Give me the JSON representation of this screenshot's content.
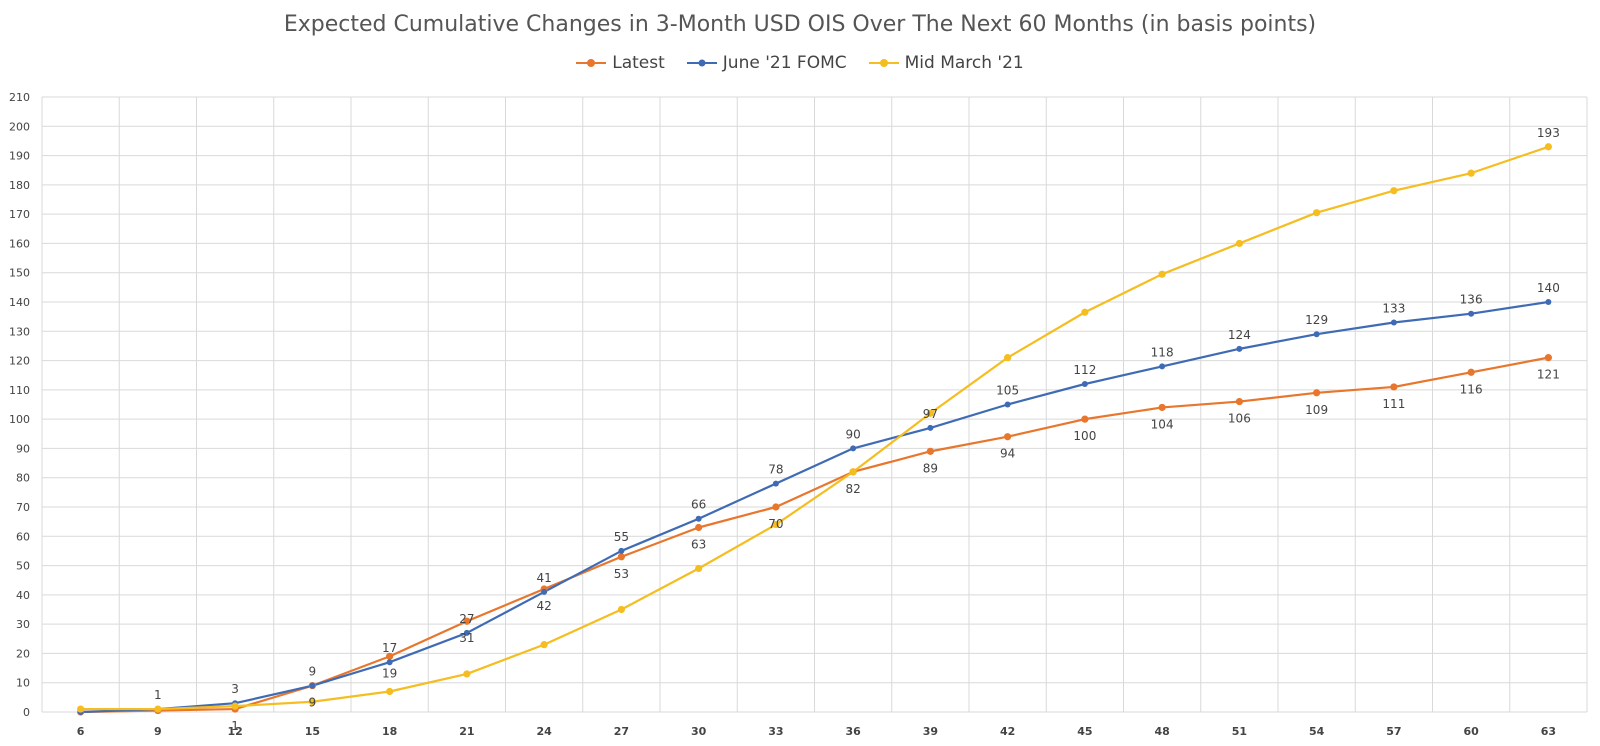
{
  "chart_data": {
    "type": "line",
    "title": "Expected Cumulative Changes in 3-Month USD OIS Over The Next 60 Months (in basis points)",
    "xlabel": "",
    "ylabel": "",
    "ylim": [
      0,
      210
    ],
    "y_ticks": [
      0,
      10,
      20,
      30,
      40,
      50,
      60,
      70,
      80,
      90,
      100,
      110,
      120,
      130,
      140,
      150,
      160,
      170,
      180,
      190,
      200,
      210
    ],
    "x": [
      6,
      9,
      12,
      15,
      18,
      21,
      24,
      27,
      30,
      33,
      36,
      39,
      42,
      45,
      48,
      51,
      54,
      57,
      60,
      63
    ],
    "grid": true,
    "legend_position": "top",
    "series": [
      {
        "name": "Latest",
        "color": "#E8762C",
        "values": [
          0,
          0.5,
          1,
          9,
          19,
          31,
          42,
          53,
          63,
          70,
          82,
          89,
          94,
          100,
          104,
          106,
          109,
          111,
          116,
          121
        ],
        "labels": [
          "",
          "",
          "1",
          "9",
          "19",
          "31",
          "42",
          "53",
          "63",
          "70",
          "82",
          "89",
          "94",
          "100",
          "104",
          "106",
          "109",
          "111",
          "116",
          "121"
        ],
        "label_pos": [
          "",
          "",
          "below",
          "below",
          "below",
          "below",
          "below",
          "below",
          "below",
          "below",
          "below",
          "below",
          "below",
          "below",
          "below",
          "below",
          "below",
          "below",
          "below",
          "below"
        ]
      },
      {
        "name": "June '21 FOMC",
        "color": "#3F6BB5",
        "values": [
          0,
          1,
          3,
          9,
          17,
          27,
          41,
          55,
          66,
          78,
          90,
          97,
          105,
          112,
          118,
          124,
          129,
          133,
          136,
          140
        ],
        "labels": [
          "",
          "1",
          "3",
          "9",
          "17",
          "27",
          "41",
          "55",
          "66",
          "78",
          "90",
          "97",
          "105",
          "112",
          "118",
          "124",
          "129",
          "133",
          "136",
          "140"
        ],
        "label_pos": [
          "",
          "above",
          "above",
          "above",
          "above",
          "above",
          "above",
          "above",
          "above",
          "above",
          "above",
          "above",
          "above",
          "above",
          "above",
          "above",
          "above",
          "above",
          "above",
          "above"
        ]
      },
      {
        "name": "Mid March '21",
        "color": "#F5BD1F",
        "values": [
          1,
          1,
          2,
          3.5,
          7,
          13,
          23,
          35,
          49,
          64,
          82,
          102,
          121,
          136.5,
          149.5,
          160,
          170.5,
          178,
          184,
          193
        ],
        "labels": [
          "",
          "",
          "",
          "",
          "",
          "",
          "",
          "",
          "",
          "",
          "",
          "",
          "",
          "",
          "",
          "",
          "",
          "",
          "",
          "193"
        ],
        "label_pos": [
          "",
          "",
          "",
          "",
          "",
          "",
          "",
          "",
          "",
          "",
          "",
          "",
          "",
          "",
          "",
          "",
          "",
          "",
          "",
          "above"
        ]
      }
    ]
  }
}
